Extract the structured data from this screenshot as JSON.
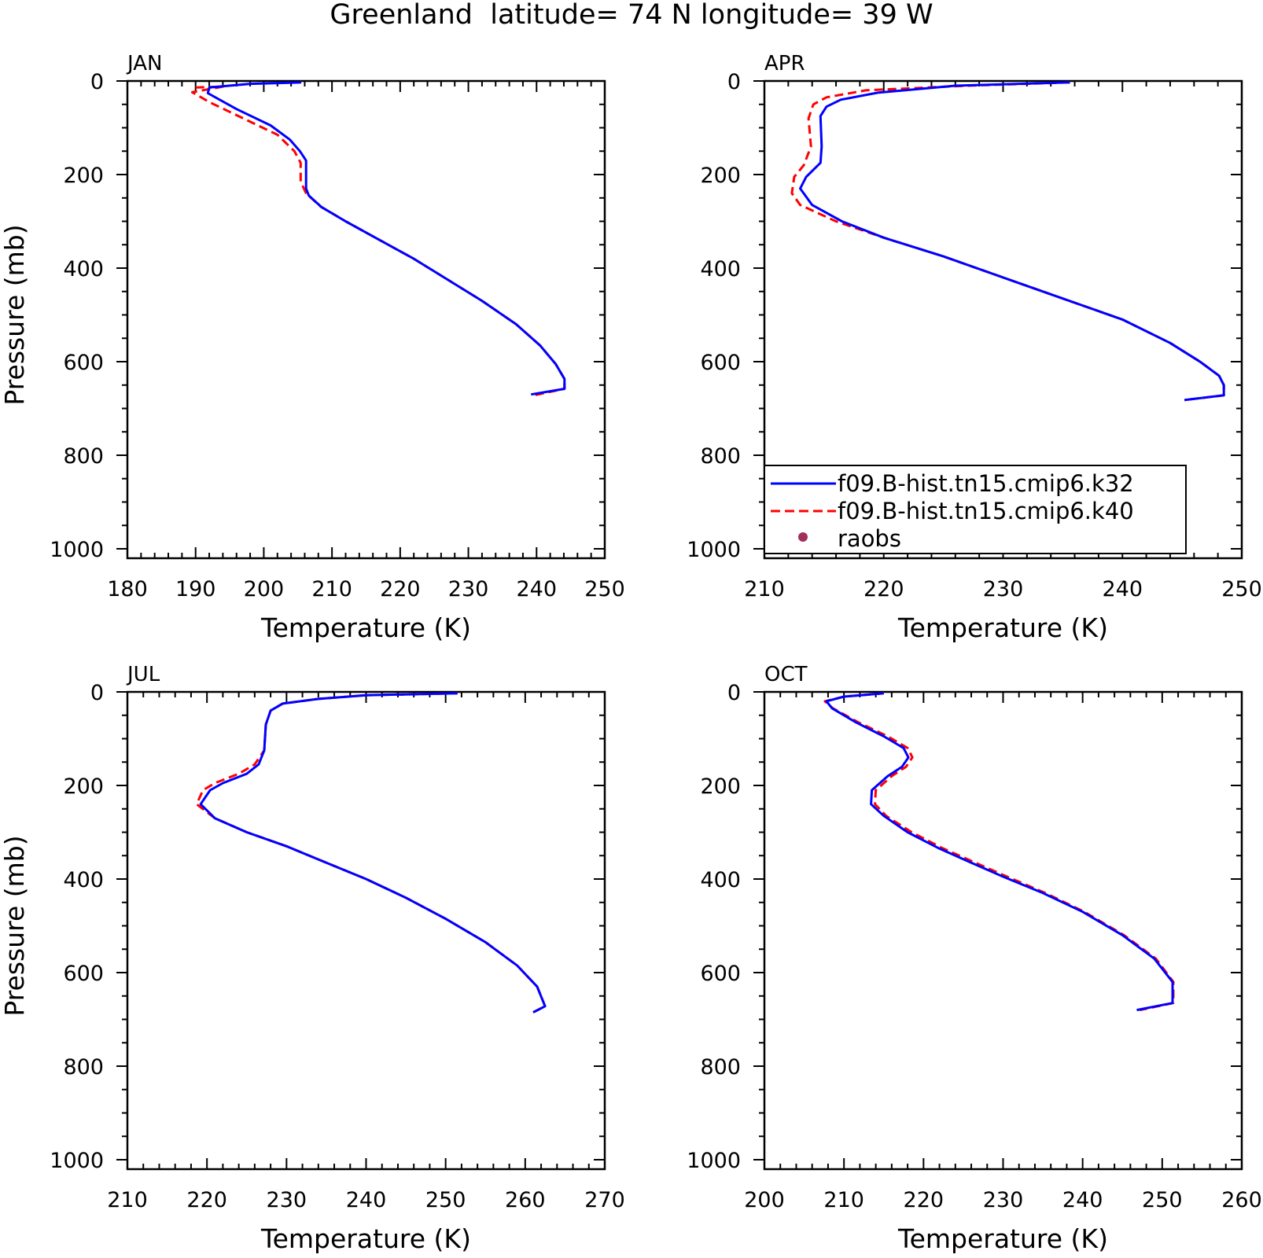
{
  "figure": {
    "title": "Greenland  latitude= 74 N longitude= 39 W"
  },
  "legend": {
    "panel": "APR",
    "entries": [
      {
        "label": "f09.B-hist.tn15.cmip6.k32",
        "color": "#0000ff",
        "style": "solid"
      },
      {
        "label": "f09.B-hist.tn15.cmip6.k40",
        "color": "#ff0000",
        "style": "dashed"
      },
      {
        "label": "raobs",
        "color": "#a0305a",
        "style": "marker"
      }
    ]
  },
  "chart_data": [
    {
      "type": "line",
      "title": "JAN",
      "xlabel": "Temperature (K)",
      "ylabel": "Pressure (mb)",
      "xlim": [
        180,
        250
      ],
      "ylim": [
        1000,
        0
      ],
      "xticks": [
        180,
        190,
        200,
        210,
        220,
        230,
        240,
        250
      ],
      "yticks": [
        0,
        200,
        400,
        600,
        800,
        1000
      ],
      "grid": false,
      "series": [
        {
          "name": "f09.B-hist.tn15.cmip6.k32",
          "color": "#0000ff",
          "style": "solid",
          "x": [
            205.5,
            198,
            192,
            191.8,
            196,
            201,
            203.8,
            205.3,
            206.2,
            206.2,
            206.6,
            208.5,
            212,
            217,
            222,
            227,
            232,
            237,
            240.5,
            242.8,
            244.1,
            244.1,
            239.2
          ],
          "y": [
            3,
            6,
            14,
            26,
            60,
            95,
            125,
            150,
            170,
            230,
            245,
            270,
            300,
            340,
            380,
            425,
            470,
            520,
            565,
            605,
            637,
            658,
            670
          ]
        },
        {
          "name": "f09.B-hist.tn15.cmip6.k40",
          "color": "#ff0000",
          "style": "dashed",
          "x": [
            190,
            192,
            194,
            189.5,
            192,
            197,
            202,
            204.5,
            205.4,
            205.4,
            206.2,
            208.3,
            212,
            217,
            222,
            227,
            232,
            237,
            240.5,
            242.8,
            244.1,
            244.1,
            239.6
          ],
          "y": [
            14,
            13,
            12,
            24,
            45,
            80,
            115,
            150,
            175,
            215,
            240,
            268,
            300,
            340,
            380,
            425,
            470,
            520,
            565,
            605,
            637,
            658,
            672
          ]
        }
      ]
    },
    {
      "type": "line",
      "title": "APR",
      "xlabel": "Temperature (K)",
      "ylabel": "",
      "xlim": [
        210,
        250
      ],
      "ylim": [
        1000,
        0
      ],
      "xticks": [
        210,
        220,
        230,
        240,
        250
      ],
      "yticks": [
        0,
        200,
        400,
        600,
        800,
        1000
      ],
      "grid": false,
      "series": [
        {
          "name": "f09.B-hist.tn15.cmip6.k32",
          "color": "#0000ff",
          "style": "solid",
          "x": [
            235.6,
            226,
            219.5,
            216.4,
            215.2,
            214.7,
            214.8,
            214.7,
            213.5,
            213.0,
            214,
            216.5,
            220,
            225,
            230,
            235,
            240,
            244,
            246.5,
            248.1,
            248.5,
            248.5,
            245.2
          ],
          "y": [
            3,
            10,
            25,
            40,
            55,
            75,
            140,
            175,
            205,
            230,
            265,
            300,
            335,
            375,
            420,
            465,
            510,
            560,
            600,
            630,
            650,
            672,
            682
          ]
        },
        {
          "name": "f09.B-hist.tn15.cmip6.k40",
          "color": "#ff0000",
          "style": "dashed",
          "x": [
            235.6,
            227,
            218.5,
            215.2,
            214.1,
            213.7,
            213.9,
            213.3,
            212.5,
            212.3,
            213,
            216,
            220,
            225,
            230,
            235,
            240,
            244,
            246.5,
            248.1,
            248.5,
            248.5,
            245.2
          ],
          "y": [
            3,
            10,
            20,
            35,
            50,
            80,
            140,
            180,
            205,
            240,
            265,
            300,
            335,
            375,
            420,
            465,
            510,
            560,
            600,
            630,
            650,
            672,
            682
          ]
        }
      ]
    },
    {
      "type": "line",
      "title": "JUL",
      "xlabel": "Temperature (K)",
      "ylabel": "Pressure (mb)",
      "xlim": [
        210,
        270
      ],
      "ylim": [
        1000,
        0
      ],
      "xticks": [
        210,
        220,
        230,
        240,
        250,
        260,
        270
      ],
      "yticks": [
        0,
        200,
        400,
        600,
        800,
        1000
      ],
      "grid": false,
      "series": [
        {
          "name": "f09.B-hist.tn15.cmip6.k32",
          "color": "#0000ff",
          "style": "solid",
          "x": [
            251.5,
            240,
            234,
            229.5,
            228,
            227.4,
            227.2,
            226.5,
            225,
            222,
            220.4,
            219.2,
            221,
            225,
            230,
            235,
            240,
            245,
            250,
            255,
            259,
            261.5,
            262.5,
            261.0
          ],
          "y": [
            3,
            7,
            15,
            25,
            40,
            70,
            125,
            155,
            175,
            195,
            210,
            240,
            270,
            300,
            330,
            365,
            400,
            440,
            485,
            535,
            585,
            630,
            672,
            685
          ]
        },
        {
          "name": "f09.B-hist.tn15.cmip6.k40",
          "color": "#ff0000",
          "style": "dashed",
          "x": [
            251.5,
            240,
            234,
            229.5,
            228,
            227.4,
            227.2,
            226,
            224,
            221,
            219.5,
            218.7,
            221,
            225,
            230,
            235,
            240,
            245,
            250,
            255,
            259,
            261.5,
            262.5,
            261.0
          ],
          "y": [
            3,
            7,
            15,
            25,
            40,
            70,
            125,
            155,
            175,
            195,
            210,
            240,
            270,
            300,
            330,
            365,
            400,
            440,
            485,
            535,
            585,
            630,
            672,
            685
          ]
        }
      ]
    },
    {
      "type": "line",
      "title": "OCT",
      "xlabel": "Temperature (K)",
      "ylabel": "",
      "xlim": [
        200,
        260
      ],
      "ylim": [
        1000,
        0
      ],
      "xticks": [
        200,
        210,
        220,
        230,
        240,
        250,
        260
      ],
      "yticks": [
        0,
        200,
        400,
        600,
        800,
        1000
      ],
      "grid": false,
      "series": [
        {
          "name": "f09.B-hist.tn15.cmip6.k32",
          "color": "#0000ff",
          "style": "solid",
          "x": [
            215,
            210,
            207.8,
            208.5,
            211.5,
            215,
            217.5,
            218.1,
            217.3,
            215.5,
            213.5,
            213.4,
            215,
            218,
            222,
            226,
            230,
            235,
            240,
            245,
            249,
            251.3,
            251.3,
            246.8
          ],
          "y": [
            3,
            10,
            20,
            35,
            65,
            95,
            120,
            140,
            160,
            180,
            210,
            240,
            265,
            300,
            335,
            365,
            395,
            430,
            470,
            520,
            570,
            620,
            665,
            680
          ]
        },
        {
          "name": "f09.B-hist.tn15.cmip6.k40",
          "color": "#ff0000",
          "style": "dashed",
          "x": [
            215,
            210,
            207.6,
            208.6,
            211.8,
            215.5,
            218,
            218.6,
            217.8,
            216,
            214,
            213.9,
            215.3,
            218.5,
            222.5,
            226.5,
            230.5,
            235.3,
            240.2,
            245.2,
            249.2,
            251.4,
            251.4,
            247.2
          ],
          "y": [
            3,
            10,
            20,
            35,
            65,
            95,
            120,
            140,
            160,
            180,
            210,
            240,
            265,
            300,
            335,
            365,
            395,
            430,
            470,
            520,
            570,
            620,
            665,
            680
          ]
        }
      ]
    }
  ]
}
